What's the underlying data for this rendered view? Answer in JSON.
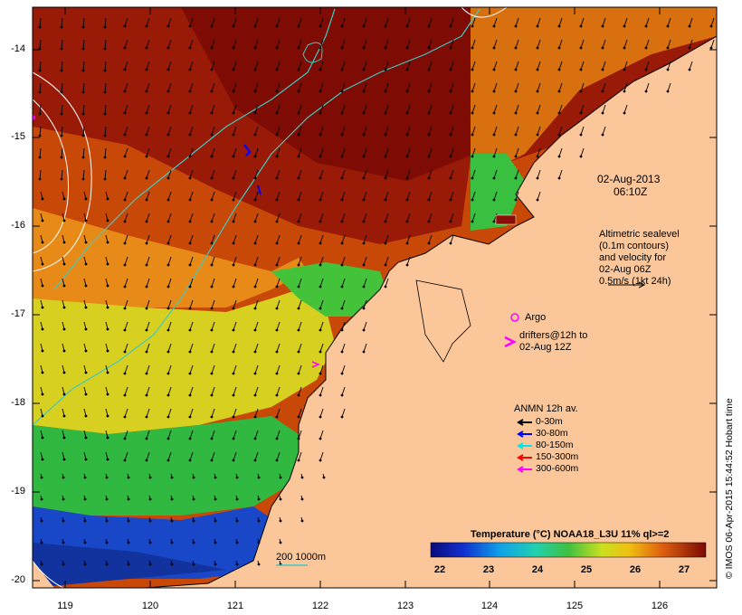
{
  "map": {
    "x_ticks": [
      "119",
      "120",
      "121",
      "122",
      "123",
      "124",
      "125",
      "126"
    ],
    "y_ticks": [
      "-14",
      "-15",
      "-16",
      "-17",
      "-18",
      "-19",
      "-20"
    ],
    "date_line": "02-Aug-2013",
    "time_line": "06:10Z",
    "altimetry_lines": [
      "Altimetric sealevel",
      "(0.1m contours)",
      "and velocity for",
      "02-Aug 06Z",
      "0.5m/s (1kt 24h)"
    ],
    "argo_label": "Argo",
    "drifter_lines": [
      "drifters@12h to",
      "02-Aug 12Z"
    ],
    "anmn_title": "ANMN 12h av.",
    "anmn_items": [
      {
        "label": "0-30m",
        "color": "#000000"
      },
      {
        "label": "30-80m",
        "color": "#0000ff"
      },
      {
        "label": "80-150m",
        "color": "#00e5e5"
      },
      {
        "label": "150-300m",
        "color": "#ff0000"
      },
      {
        "label": "300-600m",
        "color": "#ff00ff"
      }
    ],
    "depth_contour_label": "200  1000m",
    "colorbar_title": "Temperature (°C) NOAA18_L3U 11% ql>=2",
    "colorbar_ticks": [
      "22",
      "23",
      "24",
      "25",
      "26",
      "27"
    ],
    "credit": "© IMOS 06-Apr-2015 15:44:52 Hobart time",
    "colors": {
      "land": "#fbc79a",
      "warm": "#8a0e06",
      "mid": "#e07a10",
      "green": "#3dbf3d",
      "cold": "#1434b8",
      "contour_cyan": "#3fc9c0"
    }
  }
}
